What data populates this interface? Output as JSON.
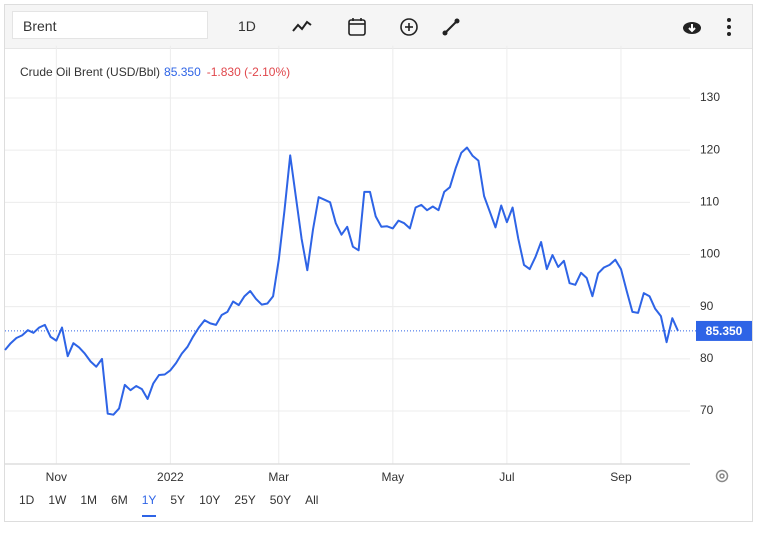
{
  "toolbar": {
    "search": "Brent",
    "interval": "1D"
  },
  "ranges": {
    "items": [
      "1D",
      "1W",
      "1M",
      "6M",
      "1Y",
      "5Y",
      "10Y",
      "25Y",
      "50Y",
      "All"
    ],
    "active": 4
  },
  "chart_data": {
    "type": "line",
    "title": "Crude Oil Brent (USD/Bbl)",
    "last_price": {
      "value": 85.35,
      "label": "85.350"
    },
    "change": "-1.830 (-2.10%)",
    "categories": [
      null,
      null,
      null,
      null,
      null,
      null,
      null,
      null,
      null,
      "Nov",
      null,
      null,
      null,
      null,
      null,
      null,
      null,
      null,
      null,
      null,
      null,
      null,
      null,
      null,
      null,
      null,
      null,
      null,
      null,
      "2022",
      null,
      null,
      null,
      null,
      null,
      null,
      null,
      null,
      null,
      null,
      null,
      null,
      null,
      null,
      null,
      null,
      null,
      null,
      "Mar",
      null,
      null,
      null,
      null,
      null,
      null,
      null,
      null,
      null,
      null,
      null,
      null,
      null,
      null,
      null,
      null,
      null,
      null,
      null,
      "May",
      null,
      null,
      null,
      null,
      null,
      null,
      null,
      null,
      null,
      null,
      null,
      null,
      null,
      null,
      null,
      null,
      null,
      null,
      null,
      "Jul",
      null,
      null,
      null,
      null,
      null,
      null,
      null,
      null,
      null,
      null,
      null,
      null,
      null,
      null,
      null,
      null,
      null,
      null,
      null,
      "Sep",
      null,
      null,
      null,
      null,
      null,
      null,
      null,
      null,
      null,
      null
    ],
    "series": [
      {
        "name": "Brent",
        "color": "#2e64e6",
        "values": [
          81.7,
          83.0,
          84.0,
          84.5,
          85.5,
          85.0,
          86.0,
          86.5,
          84.2,
          83.5,
          86.0,
          80.5,
          83.0,
          82.2,
          81.0,
          79.5,
          78.5,
          80.0,
          69.5,
          69.3,
          70.5,
          75.0,
          74.0,
          74.8,
          74.2,
          72.3,
          75.3,
          76.9,
          77.0,
          77.8,
          79.2,
          81.0,
          82.3,
          84.3,
          86.0,
          87.4,
          86.8,
          86.5,
          88.4,
          89.0,
          91.0,
          90.3,
          92.0,
          93.0,
          91.5,
          90.4,
          90.6,
          92.0,
          99.0,
          108.5,
          119.0,
          111.0,
          103.0,
          97.0,
          104.8,
          111.0,
          110.5,
          110.0,
          106.0,
          103.8,
          105.3,
          101.5,
          100.8,
          112.0,
          112.0,
          107.3,
          105.3,
          105.4,
          105.0,
          106.5,
          106.0,
          105.0,
          109.0,
          109.5,
          108.5,
          109.2,
          108.5,
          112.0,
          112.9,
          116.5,
          119.5,
          120.5,
          118.9,
          118.0,
          111.2,
          108.2,
          105.2,
          109.4,
          106.2,
          109.0,
          103.0,
          98.0,
          97.2,
          99.5,
          102.4,
          97.2,
          99.9,
          97.6,
          98.8,
          94.5,
          94.2,
          96.5,
          95.5,
          92.0,
          96.4,
          97.5,
          98.0,
          99.0,
          97.2,
          93.0,
          89.0,
          88.8,
          92.6,
          92.0,
          89.6,
          88.2,
          83.2,
          87.8,
          85.35
        ]
      }
    ],
    "ylim": [
      60,
      140
    ],
    "yticks": [
      70,
      80,
      90,
      100,
      110,
      120,
      130
    ],
    "grid": true
  }
}
